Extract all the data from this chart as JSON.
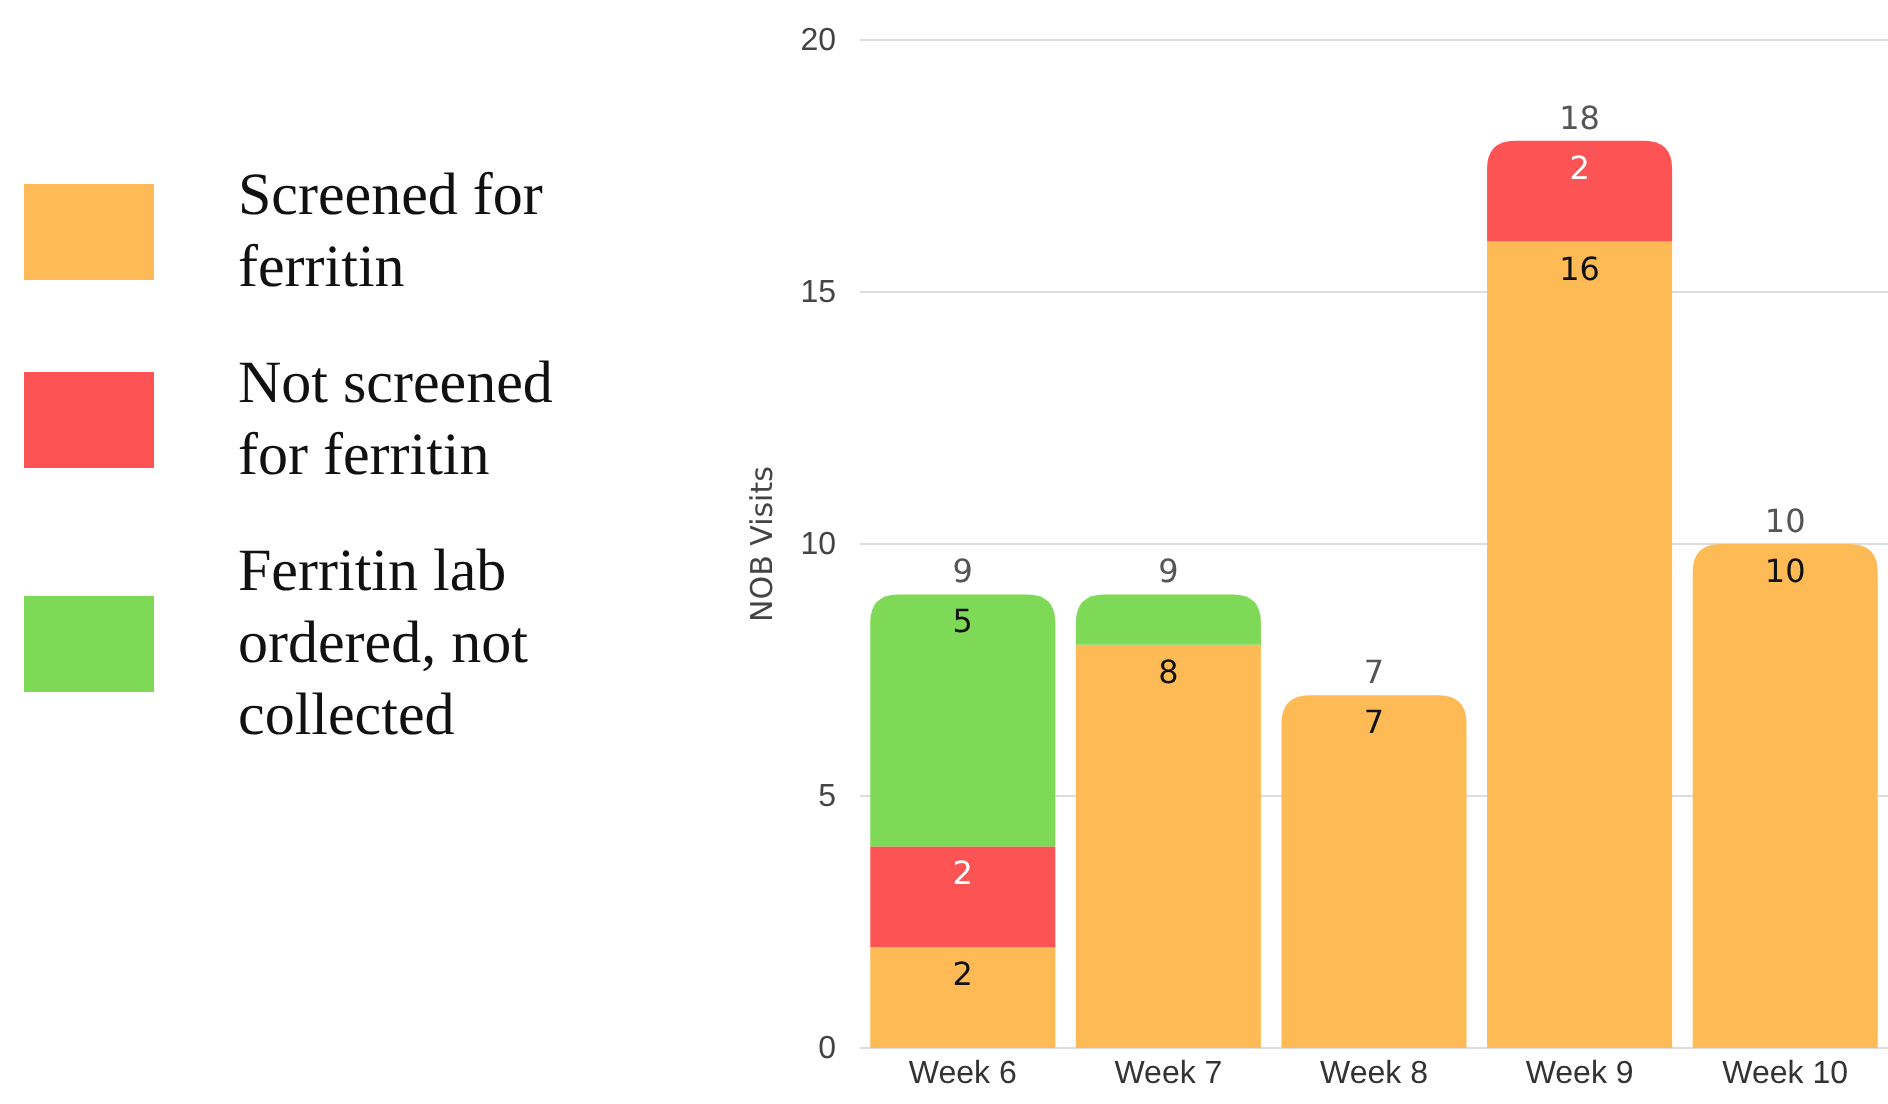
{
  "chart_data": {
    "type": "bar",
    "stacked": true,
    "ylabel": "NOB Visits",
    "categories": [
      "Week 6",
      "Week 7",
      "Week 8",
      "Week 9",
      "Week 10"
    ],
    "series": [
      {
        "name": "Screened for ferritin",
        "color": "#fdba55",
        "values": [
          2,
          8,
          7,
          16,
          10
        ],
        "value_labels": [
          "2",
          "8",
          "7",
          "16",
          "10"
        ]
      },
      {
        "name": "Not screened for ferritin",
        "color": "#fc5454",
        "values": [
          2,
          null,
          null,
          2,
          null
        ],
        "value_labels": [
          "2",
          null,
          null,
          "2",
          null
        ]
      },
      {
        "name": "Ferritin lab ordered, not collected",
        "color": "#7ed957",
        "values": [
          5,
          1,
          null,
          null,
          null
        ],
        "value_labels": [
          "5",
          null,
          null,
          null,
          null
        ]
      }
    ],
    "totals": [
      "9",
      "9",
      "7",
      "18",
      "10"
    ],
    "ylim": [
      0,
      20
    ],
    "yticks": [
      0,
      5,
      10,
      15,
      20
    ],
    "grid": "y",
    "legend": "left"
  }
}
